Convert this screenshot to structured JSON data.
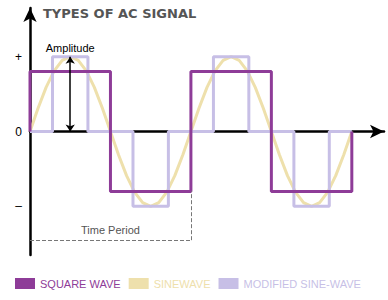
{
  "chart_data": {
    "type": "line",
    "title": "TYPES OF AC SIGNAL",
    "xlim": [
      0,
      2.2
    ],
    "ylim": [
      -1.65,
      1.65
    ],
    "yticks": [
      {
        "value": 1,
        "label": "+"
      },
      0,
      {
        "value": -1,
        "label": "–"
      }
    ],
    "tick_labels": "y",
    "grid": false,
    "legend": "bottom",
    "series": [
      {
        "name": "SQUARE WAVE",
        "color": "#8e3c98",
        "x": [
          0,
          0,
          0.5,
          0.5,
          1,
          1,
          1.5,
          1.5,
          2,
          2
        ],
        "values": [
          0,
          0.8,
          0.8,
          -0.8,
          -0.8,
          0.8,
          0.8,
          -0.8,
          -0.8,
          0
        ]
      },
      {
        "name": "SINEWAVE",
        "color": "#eee0ac",
        "x": [
          0,
          0.05,
          0.1,
          0.15,
          0.2,
          0.25,
          0.3,
          0.35,
          0.4,
          0.45,
          0.5,
          0.55,
          0.6,
          0.65,
          0.7,
          0.75,
          0.8,
          0.85,
          0.9,
          0.95,
          1,
          1.05,
          1.1,
          1.15,
          1.2,
          1.25,
          1.3,
          1.35,
          1.4,
          1.45,
          1.5,
          1.55,
          1.6,
          1.65,
          1.7,
          1.75,
          1.8,
          1.85,
          1.9,
          1.95,
          2
        ],
        "values": [
          0,
          0.31,
          0.59,
          0.81,
          0.95,
          1,
          0.95,
          0.81,
          0.59,
          0.31,
          0,
          -0.31,
          -0.59,
          -0.81,
          -0.95,
          -1,
          -0.95,
          -0.81,
          -0.59,
          -0.31,
          0,
          0.31,
          0.59,
          0.81,
          0.95,
          1,
          0.95,
          0.81,
          0.59,
          0.31,
          0,
          -0.31,
          -0.59,
          -0.81,
          -0.95,
          -1,
          -0.95,
          -0.81,
          -0.59,
          -0.31,
          0
        ]
      },
      {
        "name": "MODIFIED SINE-WAVE",
        "color": "#c7bfe6",
        "x": [
          0,
          0.14,
          0.14,
          0.36,
          0.36,
          0.64,
          0.64,
          0.86,
          0.86,
          1.14,
          1.14,
          1.36,
          1.36,
          1.64,
          1.64,
          1.86,
          1.86,
          2
        ],
        "values": [
          0,
          0,
          1,
          1,
          0,
          0,
          -1,
          -1,
          0,
          0,
          1,
          1,
          0,
          0,
          -1,
          -1,
          0,
          0
        ]
      }
    ],
    "annotations": [
      {
        "text": "Amplitude",
        "x": 0.25,
        "y": [
          0,
          1
        ]
      },
      {
        "text": "Time Period",
        "x": [
          0,
          1
        ]
      }
    ]
  }
}
